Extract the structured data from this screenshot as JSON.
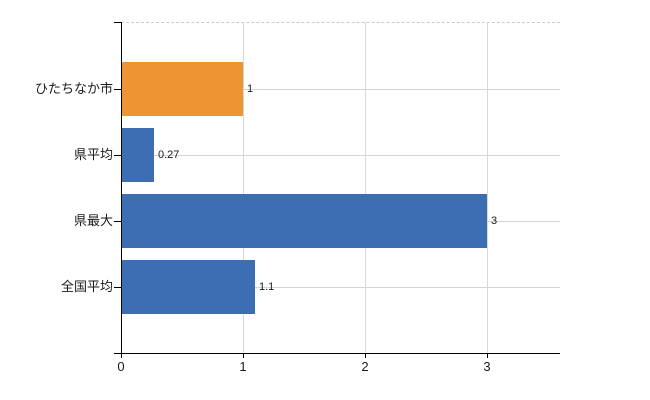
{
  "chart_data": {
    "type": "bar",
    "orientation": "horizontal",
    "title": "",
    "xlabel": "",
    "ylabel": "",
    "categories": [
      "ひたちなか市",
      "県平均",
      "県最大",
      "全国平均"
    ],
    "values": [
      1,
      0.27,
      3,
      1.1
    ],
    "value_labels": [
      "1",
      "0.27",
      "3",
      "1.1"
    ],
    "bar_colors": [
      "#EE9432",
      "#3D6EB2",
      "#3D6EB2",
      "#3D6EB2"
    ],
    "xlim": [
      0,
      3.6
    ],
    "xticks": [
      0,
      1,
      2,
      3
    ],
    "xtick_labels": [
      "0",
      "1",
      "2",
      "3"
    ],
    "grid": true,
    "legend": false,
    "colors": {
      "background": "#FFFFFF",
      "grid_vertical": "#D5DAD5",
      "grid_horizontal": "#CFD8D0",
      "plot_top_border": "#C9CCD2",
      "axis": "#000000",
      "text": "#1A1A1A",
      "accent_orange": "#EE9432",
      "accent_blue": "#3D6EB2"
    }
  }
}
